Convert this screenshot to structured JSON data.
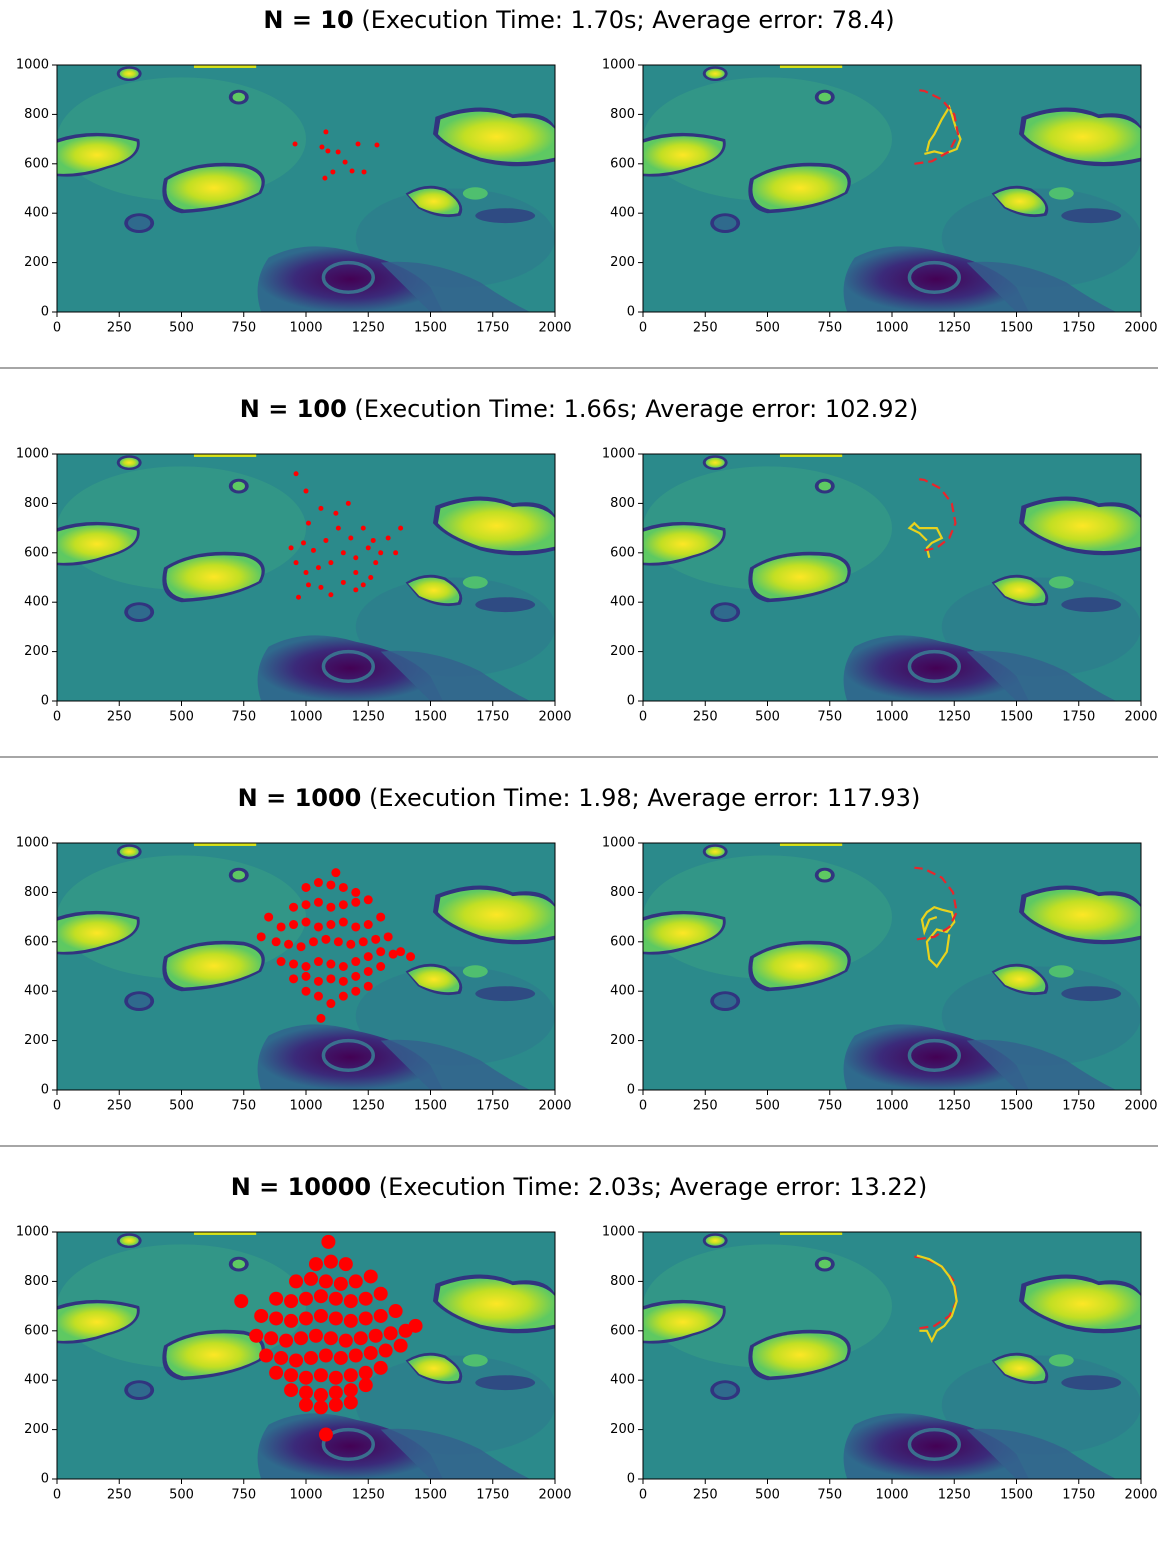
{
  "chart_data": [
    {
      "type": "scatter",
      "title": "N = 10",
      "subtitle": "(Execution Time: 1.70s; Average error: 78.4)",
      "xlim": [
        0,
        2000
      ],
      "ylim": [
        1000,
        0
      ],
      "xticks": [
        0,
        250,
        500,
        750,
        1000,
        1250,
        1500,
        1750,
        2000
      ],
      "yticks": [
        0,
        200,
        400,
        600,
        800,
        1000
      ],
      "color": "#ff0000",
      "marker_size": 2.5,
      "x": [
        956,
        1076,
        1108,
        1185,
        1064,
        1080,
        1157,
        1209,
        1285,
        1233,
        1088,
        1129
      ],
      "values": [
        680,
        542,
        567,
        571,
        668,
        729,
        607,
        680,
        676,
        567,
        652,
        648
      ]
    },
    {
      "type": "line",
      "xlim": [
        0,
        2000
      ],
      "ylim": [
        1000,
        0
      ],
      "xticks": [
        0,
        250,
        500,
        750,
        1000,
        1250,
        1500,
        1750,
        2000
      ],
      "yticks": [
        0,
        200,
        400,
        600,
        800,
        1000
      ],
      "series": [
        {
          "color": "#e8d21d",
          "linestyle": "solid",
          "x": [
            1130,
            1170,
            1210,
            1260,
            1275,
            1255,
            1240,
            1230,
            1200,
            1170,
            1150,
            1140
          ],
          "values": [
            640,
            650,
            640,
            660,
            700,
            750,
            800,
            830,
            780,
            720,
            690,
            650
          ]
        },
        {
          "color": "#e8262c",
          "linestyle": "dashed",
          "x": [
            1090,
            1160,
            1230,
            1265,
            1250,
            1200,
            1130,
            1090
          ],
          "values": [
            600,
            610,
            650,
            720,
            800,
            860,
            895,
            900
          ]
        }
      ]
    },
    {
      "type": "scatter",
      "title": "N = 100",
      "subtitle": "(Execution Time: 1.66s; Average error: 102.92)",
      "xlim": [
        0,
        2000
      ],
      "ylim": [
        1000,
        0
      ],
      "xticks": [
        0,
        250,
        500,
        750,
        1000,
        1250,
        1500,
        1750,
        2000
      ],
      "yticks": [
        0,
        200,
        400,
        600,
        800,
        1000
      ],
      "color": "#ff0000",
      "marker_size": 2.5,
      "x": [
        970,
        1010,
        1060,
        1100,
        1150,
        1200,
        1230,
        1260,
        1280,
        1300,
        1250,
        1200,
        1150,
        1100,
        1050,
        1000,
        960,
        940,
        990,
        1030,
        1080,
        1130,
        1180,
        1230,
        1270,
        1330,
        1380,
        1360,
        1010,
        1060,
        1120,
        1170,
        1000,
        960,
        1200
      ],
      "values": [
        420,
        470,
        460,
        430,
        480,
        450,
        470,
        500,
        560,
        600,
        620,
        580,
        600,
        560,
        540,
        520,
        560,
        620,
        640,
        610,
        650,
        700,
        660,
        700,
        650,
        660,
        700,
        600,
        720,
        780,
        760,
        800,
        850,
        920,
        520
      ]
    },
    {
      "type": "line",
      "xlim": [
        0,
        2000
      ],
      "ylim": [
        1000,
        0
      ],
      "xticks": [
        0,
        250,
        500,
        750,
        1000,
        1250,
        1500,
        1750,
        2000
      ],
      "yticks": [
        0,
        200,
        400,
        600,
        800,
        1000
      ],
      "series": [
        {
          "color": "#e8d21d",
          "linestyle": "solid",
          "x": [
            1150,
            1140,
            1160,
            1200,
            1180,
            1110,
            1090,
            1070,
            1110,
            1140
          ],
          "values": [
            580,
            620,
            640,
            660,
            700,
            700,
            720,
            700,
            680,
            650
          ]
        },
        {
          "color": "#e8262c",
          "linestyle": "dashed",
          "x": [
            1130,
            1180,
            1230,
            1255,
            1240,
            1195,
            1130,
            1090
          ],
          "values": [
            610,
            620,
            660,
            720,
            800,
            860,
            895,
            900
          ]
        }
      ]
    },
    {
      "type": "scatter",
      "title": "N = 1000",
      "subtitle": "(Execution Time: 1.98; Average error: 117.93)",
      "xlim": [
        0,
        2000
      ],
      "ylim": [
        1000,
        0
      ],
      "xticks": [
        0,
        250,
        500,
        750,
        1000,
        1250,
        1500,
        1750,
        2000
      ],
      "yticks": [
        0,
        200,
        400,
        600,
        800,
        1000
      ],
      "color": "#ff0000",
      "marker_size": 4.5,
      "x": [
        1000,
        1050,
        1100,
        1150,
        1200,
        1250,
        950,
        1000,
        1050,
        1100,
        1150,
        1200,
        1250,
        1300,
        900,
        950,
        1000,
        1050,
        1100,
        1150,
        1200,
        1250,
        1300,
        1350,
        880,
        930,
        980,
        1030,
        1080,
        1130,
        1180,
        1230,
        1280,
        1330,
        1380,
        900,
        950,
        1000,
        1050,
        1100,
        1150,
        1200,
        1250,
        1300,
        950,
        1000,
        1050,
        1100,
        1150,
        1200,
        1250,
        1000,
        1050,
        1100,
        1150,
        1200,
        820,
        850,
        1420,
        1060,
        1120
      ],
      "values": [
        400,
        380,
        350,
        380,
        400,
        420,
        450,
        460,
        440,
        450,
        440,
        460,
        480,
        500,
        520,
        510,
        500,
        520,
        510,
        500,
        520,
        540,
        560,
        550,
        600,
        590,
        580,
        600,
        610,
        600,
        590,
        600,
        610,
        620,
        560,
        660,
        670,
        680,
        660,
        670,
        680,
        660,
        670,
        700,
        740,
        750,
        760,
        740,
        750,
        760,
        770,
        820,
        840,
        830,
        820,
        800,
        620,
        700,
        540,
        290,
        880
      ]
    },
    {
      "type": "line",
      "xlim": [
        0,
        2000
      ],
      "ylim": [
        1000,
        0
      ],
      "xticks": [
        0,
        250,
        500,
        750,
        1000,
        1250,
        1500,
        1750,
        2000
      ],
      "yticks": [
        0,
        200,
        400,
        600,
        800,
        1000
      ],
      "series": [
        {
          "color": "#e8d21d",
          "linestyle": "solid",
          "x": [
            1230,
            1220,
            1180,
            1150,
            1140,
            1180,
            1220,
            1250,
            1240,
            1200,
            1170,
            1140,
            1120,
            1130,
            1150,
            1180
          ],
          "values": [
            630,
            560,
            500,
            530,
            600,
            650,
            640,
            680,
            720,
            730,
            740,
            720,
            690,
            640,
            690,
            700
          ]
        },
        {
          "color": "#e8262c",
          "linestyle": "dashed",
          "x": [
            1100,
            1170,
            1230,
            1260,
            1245,
            1200,
            1130,
            1090
          ],
          "values": [
            610,
            620,
            660,
            720,
            800,
            860,
            895,
            900
          ]
        }
      ]
    },
    {
      "type": "scatter",
      "title": "N = 10000",
      "subtitle": "(Execution Time: 2.03s; Average error: 13.22)",
      "xlim": [
        0,
        2000
      ],
      "ylim": [
        1000,
        0
      ],
      "xticks": [
        0,
        250,
        500,
        750,
        1000,
        1250,
        1500,
        1750,
        2000
      ],
      "yticks": [
        0,
        200,
        400,
        600,
        800,
        1000
      ],
      "color": "#ff0000",
      "marker_size": 7,
      "x": [
        1000,
        1060,
        1120,
        1180,
        940,
        1000,
        1060,
        1120,
        1180,
        1240,
        880,
        940,
        1000,
        1060,
        1120,
        1180,
        1240,
        1300,
        840,
        900,
        960,
        1020,
        1080,
        1140,
        1200,
        1260,
        1320,
        1380,
        800,
        860,
        920,
        980,
        1040,
        1100,
        1160,
        1220,
        1280,
        1340,
        1400,
        820,
        880,
        940,
        1000,
        1060,
        1120,
        1180,
        1240,
        1300,
        1360,
        880,
        940,
        1000,
        1060,
        1120,
        1180,
        1240,
        1300,
        960,
        1020,
        1080,
        1140,
        1200,
        1260,
        1040,
        1100,
        1160,
        740,
        1440,
        1080,
        1090
      ],
      "values": [
        300,
        290,
        300,
        310,
        360,
        350,
        340,
        350,
        360,
        380,
        430,
        420,
        410,
        420,
        410,
        420,
        430,
        450,
        500,
        490,
        480,
        490,
        500,
        490,
        500,
        510,
        520,
        540,
        580,
        570,
        560,
        570,
        580,
        570,
        560,
        570,
        580,
        590,
        600,
        660,
        650,
        640,
        650,
        660,
        650,
        640,
        650,
        660,
        680,
        730,
        720,
        730,
        740,
        730,
        720,
        730,
        750,
        800,
        810,
        800,
        790,
        800,
        820,
        870,
        880,
        870,
        720,
        620,
        180,
        960
      ]
    },
    {
      "type": "line",
      "xlim": [
        0,
        2000
      ],
      "ylim": [
        1000,
        0
      ],
      "xticks": [
        0,
        250,
        500,
        750,
        1000,
        1250,
        1500,
        1750,
        2000
      ],
      "yticks": [
        0,
        200,
        400,
        600,
        800,
        1000
      ],
      "series": [
        {
          "color": "#e8262c",
          "linestyle": "dashed",
          "x": [
            1110,
            1170,
            1230,
            1260,
            1250,
            1200,
            1130,
            1090
          ],
          "values": [
            610,
            620,
            660,
            720,
            800,
            860,
            895,
            900
          ]
        },
        {
          "color": "#e8d21d",
          "linestyle": "solid",
          "x": [
            1110,
            1140,
            1160,
            1180,
            1210,
            1240,
            1260,
            1250,
            1230,
            1200,
            1150,
            1100
          ],
          "values": [
            600,
            600,
            560,
            600,
            620,
            660,
            720,
            780,
            820,
            860,
            890,
            905
          ]
        }
      ]
    }
  ]
}
